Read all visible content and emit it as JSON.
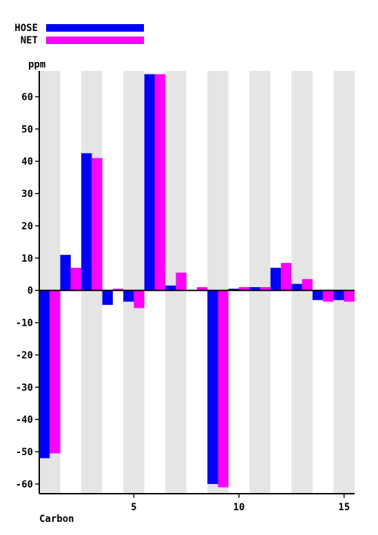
{
  "chart_data": {
    "type": "bar",
    "xlabel": "Carbon",
    "ylabel": "ppm",
    "xlim": [
      0.5,
      15.5
    ],
    "ylim": [
      -63,
      68
    ],
    "x_ticks": [
      5,
      10,
      15
    ],
    "y_ticks": [
      -60,
      -50,
      -40,
      -30,
      -20,
      -10,
      0,
      10,
      20,
      30,
      40,
      50,
      60
    ],
    "categories": [
      1,
      2,
      3,
      4,
      5,
      6,
      7,
      8,
      9,
      10,
      11,
      12,
      13,
      14,
      15
    ],
    "series": [
      {
        "name": "HOSE",
        "color": "#0000ff",
        "values": [
          -52,
          11,
          42.5,
          -4.5,
          -3.5,
          67,
          1.5,
          0,
          -60,
          0.5,
          1,
          7,
          2,
          -3,
          -3
        ]
      },
      {
        "name": "NET",
        "color": "#ff00ff",
        "values": [
          -50.5,
          7,
          41,
          0.5,
          -5.5,
          67,
          5.5,
          1,
          -61,
          1,
          1,
          8.5,
          3.5,
          -3.5,
          -3.5
        ]
      }
    ],
    "background_bands": "alternating grey/white per carbon",
    "legend_position": "top-left"
  }
}
